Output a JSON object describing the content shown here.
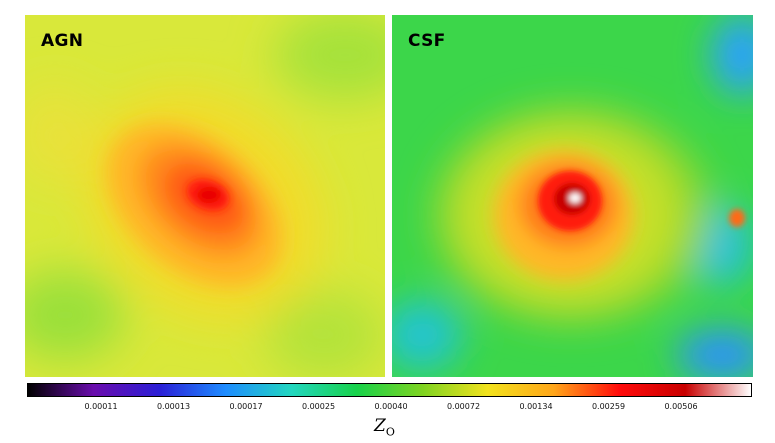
{
  "panels": [
    {
      "label": "AGN"
    },
    {
      "label": "CSF"
    }
  ],
  "colorbar": {
    "ticks": [
      "0.00011",
      "0.00013",
      "0.00017",
      "0.00025",
      "0.00040",
      "0.00072",
      "0.00134",
      "0.00259",
      "0.00506"
    ],
    "axis_symbol": "Z",
    "axis_subscript": "O",
    "colors": [
      "#000000",
      "#6a0dad",
      "#2b1fd6",
      "#1e8cff",
      "#22d6c0",
      "#18d24a",
      "#7ed321",
      "#f2e21d",
      "#ffa61a",
      "#ff0b0b",
      "#c80000",
      "#ffffff"
    ]
  }
}
